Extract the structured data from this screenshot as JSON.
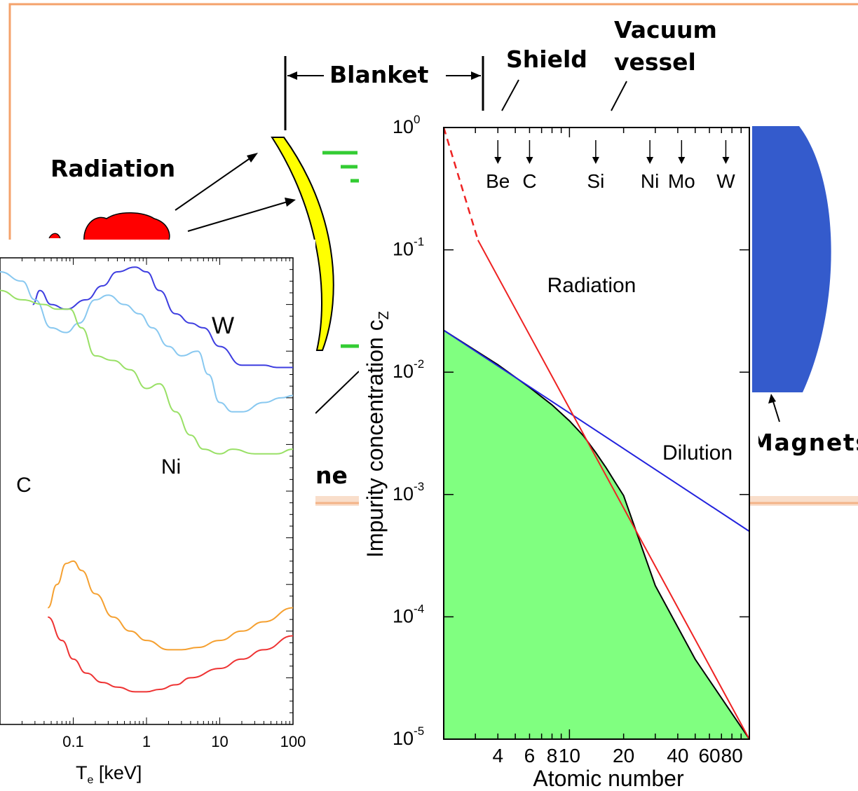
{
  "slide": {
    "labels": {
      "radiation": "Radiation",
      "blanket": "Blanket",
      "shield": "Shield",
      "vacuum_line1": "Vacuum",
      "vacuum_line2": "vessel",
      "magnets": "Magnets",
      "ne": "ne"
    },
    "colors": {
      "slide_frame": "#f4a26b",
      "plasma": "#ff0000",
      "first_wall": "#ffff00",
      "magnet": "#345bcc",
      "green_marks": "#33cc33"
    }
  },
  "chart_data": [
    {
      "type": "line",
      "xlabel": "T",
      "xlabel_sub": "e",
      "xlabel_unit": " [keV]",
      "xscale": "log",
      "xlim": [
        0.01,
        100
      ],
      "xticks": [
        "0.1",
        "1",
        "10",
        "100"
      ],
      "series": [
        {
          "name": "W",
          "color": "#3d3de0",
          "x": [
            0.028,
            0.035,
            0.05,
            0.08,
            0.15,
            0.25,
            0.4,
            0.7,
            1,
            1.5,
            2.5,
            4,
            6,
            10,
            20,
            40,
            60,
            100
          ],
          "y": [
            0,
            0.3,
            0,
            -0.1,
            0.1,
            0.4,
            0.7,
            0.8,
            0.7,
            0.3,
            -0.2,
            -0.4,
            -0.5,
            -0.9,
            -1.3,
            -1.3,
            -1.35,
            -1.35
          ]
        },
        {
          "name": "",
          "color": "#88c8f0",
          "x": [
            0.01,
            0.02,
            0.03,
            0.05,
            0.08,
            0.12,
            0.2,
            0.3,
            0.5,
            0.8,
            1.2,
            2,
            3,
            5,
            7,
            10,
            15,
            20,
            40,
            70,
            100
          ],
          "y": [
            0.7,
            0.5,
            0.1,
            -0.5,
            -0.6,
            -0.4,
            0.1,
            0.2,
            0,
            -0.2,
            -0.5,
            -0.9,
            -1.1,
            -1.0,
            -1.5,
            -2.1,
            -2.3,
            -2.3,
            -2.1,
            -2.0,
            -1.95
          ]
        },
        {
          "name": "Ni",
          "color": "#99e066",
          "x": [
            0.01,
            0.02,
            0.04,
            0.06,
            0.09,
            0.13,
            0.2,
            0.35,
            0.6,
            1,
            1.5,
            2.5,
            4,
            6,
            10,
            15,
            30,
            60,
            100
          ],
          "y": [
            0.3,
            0.1,
            0,
            -0.1,
            -0.1,
            -0.5,
            -1.1,
            -1.2,
            -1.4,
            -1.8,
            -1.7,
            -2.3,
            -2.8,
            -3.1,
            -3.2,
            -3.1,
            -3.2,
            -3.2,
            -3.1
          ]
        },
        {
          "name": "C",
          "color": "#f5a030",
          "x": [
            0.045,
            0.06,
            0.08,
            0.1,
            0.13,
            0.2,
            0.35,
            0.6,
            1,
            2,
            3,
            5,
            10,
            20,
            40,
            100
          ],
          "y": [
            -6.5,
            -6.0,
            -5.55,
            -5.5,
            -5.7,
            -6.2,
            -6.7,
            -7.0,
            -7.2,
            -7.4,
            -7.4,
            -7.35,
            -7.2,
            -7.0,
            -6.8,
            -6.5
          ]
        },
        {
          "name": "",
          "color": "#ee3333",
          "x": [
            0.045,
            0.07,
            0.1,
            0.15,
            0.25,
            0.4,
            0.7,
            1,
            1.5,
            2.5,
            4,
            10,
            20,
            40,
            100
          ],
          "y": [
            -6.7,
            -7.2,
            -7.6,
            -7.9,
            -8.1,
            -8.2,
            -8.3,
            -8.3,
            -8.25,
            -8.15,
            -8.0,
            -7.8,
            -7.6,
            -7.4,
            -7.1
          ]
        }
      ]
    },
    {
      "type": "area",
      "xlabel": "Atomic number",
      "ylabel": "Impurity concentration c",
      "ylabel_sub": "Z",
      "xscale": "log",
      "yscale": "log",
      "xlim": [
        2,
        100
      ],
      "ylim": [
        1e-05,
        1
      ],
      "xticks": [
        "4",
        "6",
        "8",
        "10",
        "20",
        "40",
        "60",
        "80"
      ],
      "yticks": [
        {
          "base": "10",
          "exp": "0"
        },
        {
          "base": "10",
          "exp": "-1"
        },
        {
          "base": "10",
          "exp": "-2"
        },
        {
          "base": "10",
          "exp": "-3"
        },
        {
          "base": "10",
          "exp": "-4"
        },
        {
          "base": "10",
          "exp": "-5"
        }
      ],
      "elements": [
        {
          "name": "Be",
          "z": 4
        },
        {
          "name": "C",
          "z": 6
        },
        {
          "name": "Si",
          "z": 14
        },
        {
          "name": "Ni",
          "z": 28
        },
        {
          "name": "Mo",
          "z": 42
        },
        {
          "name": "W",
          "z": 74
        }
      ],
      "series": [
        {
          "name": "Radiation",
          "color": "#ee2222",
          "x": [
            2,
            3.1,
            100
          ],
          "y": [
            1,
            0.12,
            1e-05
          ],
          "dashed_until_x": 3.1
        },
        {
          "name": "Dilution",
          "color": "#2222dd",
          "x": [
            2,
            100
          ],
          "y": [
            0.022,
            0.0005
          ]
        },
        {
          "name": "",
          "color": "#000000",
          "fill": "#80ff80",
          "x": [
            2,
            4,
            6,
            8,
            10,
            12,
            14,
            16,
            18,
            20,
            30,
            50,
            100
          ],
          "y": [
            0.022,
            0.0115,
            0.0075,
            0.0054,
            0.004,
            0.003,
            0.0022,
            0.00165,
            0.00125,
            0.00098,
            0.00018,
            4.5e-05,
            1e-05
          ]
        }
      ],
      "series_labels": {
        "radiation": "Radiation",
        "dilution": "Dilution"
      }
    }
  ]
}
